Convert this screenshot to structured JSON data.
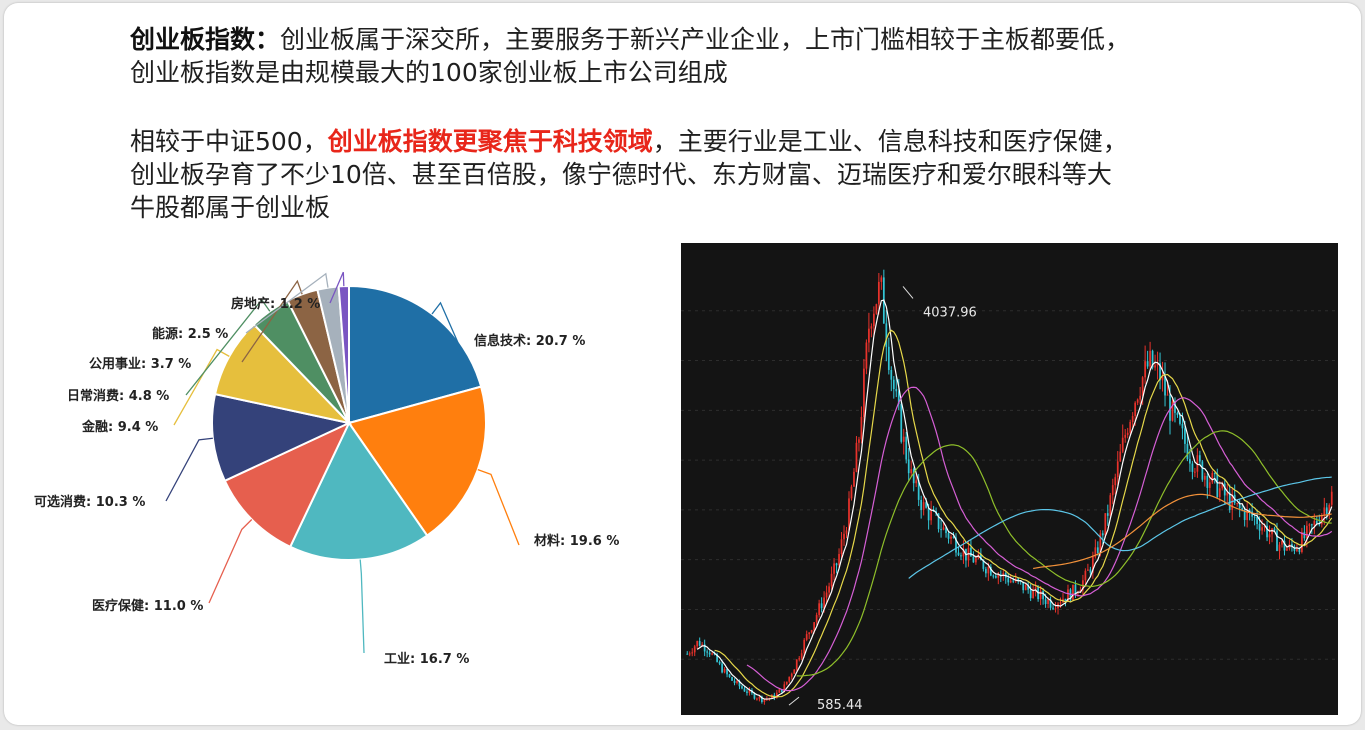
{
  "paragraph1": {
    "title": "创业板指数：",
    "line1": "创业板属于深交所，主要服务于新兴产业企业，上市门槛相较于主板都要低，",
    "line2": "创业板指数是由规模最大的100家创业板上市公司组成"
  },
  "paragraph2": {
    "lead": "相较于中证500，",
    "highlight": "创业板指数更聚焦于科技领域",
    "rest": "，主要行业是工业、信息科技和医疗保健，",
    "line2": "创业板孕育了不少10倍、甚至百倍股，像宁德时代、东方财富、迈瑞医疗和爱尔眼科等大",
    "line3": "牛股都属于创业板"
  },
  "colors": {
    "highlight": "#e8261a",
    "kline_bg": "#141414",
    "candle_up": "#e8322b",
    "candle_down": "#33c6d6"
  },
  "chart_data": [
    {
      "type": "pie",
      "slices": [
        {
          "label": "信息技术: 20.7 %",
          "value": 20.7,
          "color": "#1f6fa6"
        },
        {
          "label": "材料: 19.6 %",
          "value": 19.6,
          "color": "#ff7f0e"
        },
        {
          "label": "工业: 16.7 %",
          "value": 16.7,
          "color": "#4fb8c0"
        },
        {
          "label": "医疗保健: 11.0 %",
          "value": 11.0,
          "color": "#e65f4e"
        },
        {
          "label": "可选消费: 10.3 %",
          "value": 10.3,
          "color": "#34427a"
        },
        {
          "label": "金融: 9.4 %",
          "value": 9.4,
          "color": "#e6bf3d"
        },
        {
          "label": "日常消费: 4.8 %",
          "value": 4.8,
          "color": "#4f8f63"
        },
        {
          "label": "公用事业: 3.7 %",
          "value": 3.7,
          "color": "#8c6444"
        },
        {
          "label": "能源: 2.5 %",
          "value": 2.5,
          "color": "#a6b1bc"
        },
        {
          "label": "房地产: 1.2 %",
          "value": 1.2,
          "color": "#7a55c2"
        }
      ]
    },
    {
      "type": "line",
      "chart": "candlestick",
      "annotations": [
        {
          "text": "4037.96",
          "value": 4037.96,
          "kind": "high"
        },
        {
          "text": "585.44",
          "value": 585.44,
          "kind": "low"
        }
      ],
      "ylim": [
        520,
        4250
      ],
      "series": [
        {
          "color": "#ffffff",
          "values": [
            980,
            1080,
            1010,
            880,
            770,
            700,
            640,
            600,
            620,
            700,
            880,
            1100,
            1300,
            1500,
            1750,
            2150,
            2800,
            3800,
            4037,
            3300,
            2800,
            2400,
            2200,
            2100,
            2000,
            1900,
            1800,
            1750,
            1700,
            1650,
            1600,
            1550,
            1500,
            1450,
            1400,
            1450,
            1500,
            1600,
            1800,
            2100,
            2500,
            2900,
            3200,
            3400,
            3300,
            3000,
            2800,
            2600,
            2500,
            2400,
            2300,
            2200,
            2150,
            2100,
            2000,
            1900,
            1850,
            1900,
            2000,
            2150,
            2300
          ]
        }
      ]
    }
  ]
}
